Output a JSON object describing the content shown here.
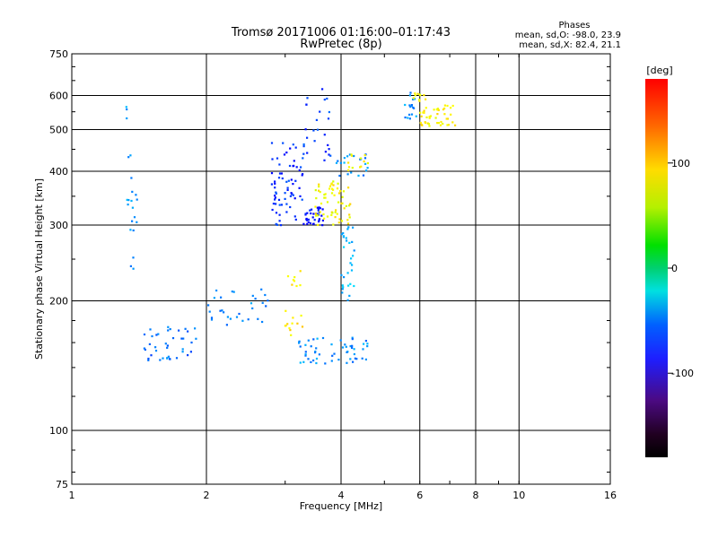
{
  "header": {
    "title": "Tromsø 20171006 01:16:00–01:17:43",
    "subtitle": "RwPretec (8p)"
  },
  "stats": {
    "heading": "Phases",
    "line1": "mean, sd,O: -98.0, 23.9",
    "line2": "mean, sd,X:  82.4, 21.1"
  },
  "colorbar": {
    "unit": "[deg]",
    "range": [
      -180,
      180
    ],
    "tick_labels": [
      "100",
      "0",
      "-100"
    ],
    "tick_values": [
      100,
      0,
      -100
    ]
  },
  "chart_data": {
    "type": "scatter",
    "xlabel": "Frequency [MHz]",
    "ylabel": "Stationary phase Virtual Height [km]",
    "xscale": "log",
    "yscale": "log",
    "xlim": [
      1,
      16
    ],
    "ylim": [
      75,
      750
    ],
    "x_ticks": [
      1,
      2,
      4,
      6,
      8,
      10,
      16
    ],
    "x_tick_labels": [
      "1",
      "2",
      "4",
      "6",
      "8",
      "10",
      "16"
    ],
    "y_ticks": [
      75,
      100,
      200,
      300,
      400,
      500,
      600,
      750
    ],
    "y_tick_labels": [
      "75",
      "100",
      "200",
      "300",
      "400",
      "500",
      "600",
      "750"
    ],
    "grid": true,
    "color_variable": "phase [deg]",
    "clusters": [
      {
        "f": [
          1.32,
          1.4
        ],
        "h": [
          220,
          600
        ],
        "n": 22,
        "phase": [
          -105,
          -80
        ]
      },
      {
        "f": [
          1.45,
          1.9
        ],
        "h": [
          145,
          175
        ],
        "n": 40,
        "phase": [
          -120,
          -90
        ]
      },
      {
        "f": [
          2.0,
          2.75
        ],
        "h": [
          175,
          215
        ],
        "n": 30,
        "phase": [
          -110,
          -85
        ]
      },
      {
        "f": [
          2.8,
          3.3
        ],
        "h": [
          300,
          470
        ],
        "n": 70,
        "phase": [
          -140,
          -110
        ]
      },
      {
        "f": [
          3.3,
          3.65
        ],
        "h": [
          300,
          330
        ],
        "n": 35,
        "phase": [
          -145,
          -125
        ]
      },
      {
        "f": [
          3.3,
          3.8
        ],
        "h": [
          420,
          640
        ],
        "n": 25,
        "phase": [
          -140,
          -105
        ]
      },
      {
        "f": [
          3.5,
          4.2
        ],
        "h": [
          300,
          380
        ],
        "n": 60,
        "phase": [
          85,
          115
        ]
      },
      {
        "f": [
          3.9,
          4.6
        ],
        "h": [
          390,
          440
        ],
        "n": 20,
        "phase": [
          -110,
          -80
        ]
      },
      {
        "f": [
          4.1,
          4.6
        ],
        "h": [
          400,
          440
        ],
        "n": 12,
        "phase": [
          90,
          110
        ]
      },
      {
        "f": [
          4.0,
          4.3
        ],
        "h": [
          200,
          300
        ],
        "n": 30,
        "phase": [
          -95,
          -70
        ]
      },
      {
        "f": [
          3.2,
          4.6
        ],
        "h": [
          143,
          165
        ],
        "n": 55,
        "phase": [
          -110,
          -80
        ]
      },
      {
        "f": [
          3.0,
          3.3
        ],
        "h": [
          165,
          190
        ],
        "n": 12,
        "phase": [
          95,
          120
        ]
      },
      {
        "f": [
          3.0,
          3.3
        ],
        "h": [
          215,
          235
        ],
        "n": 8,
        "phase": [
          90,
          115
        ]
      },
      {
        "f": [
          5.5,
          6.0
        ],
        "h": [
          520,
          610
        ],
        "n": 18,
        "phase": [
          -110,
          -80
        ]
      },
      {
        "f": [
          6.0,
          7.2
        ],
        "h": [
          510,
          570
        ],
        "n": 45,
        "phase": [
          90,
          115
        ]
      },
      {
        "f": [
          5.8,
          6.2
        ],
        "h": [
          580,
          615
        ],
        "n": 10,
        "phase": [
          95,
          110
        ]
      }
    ]
  }
}
